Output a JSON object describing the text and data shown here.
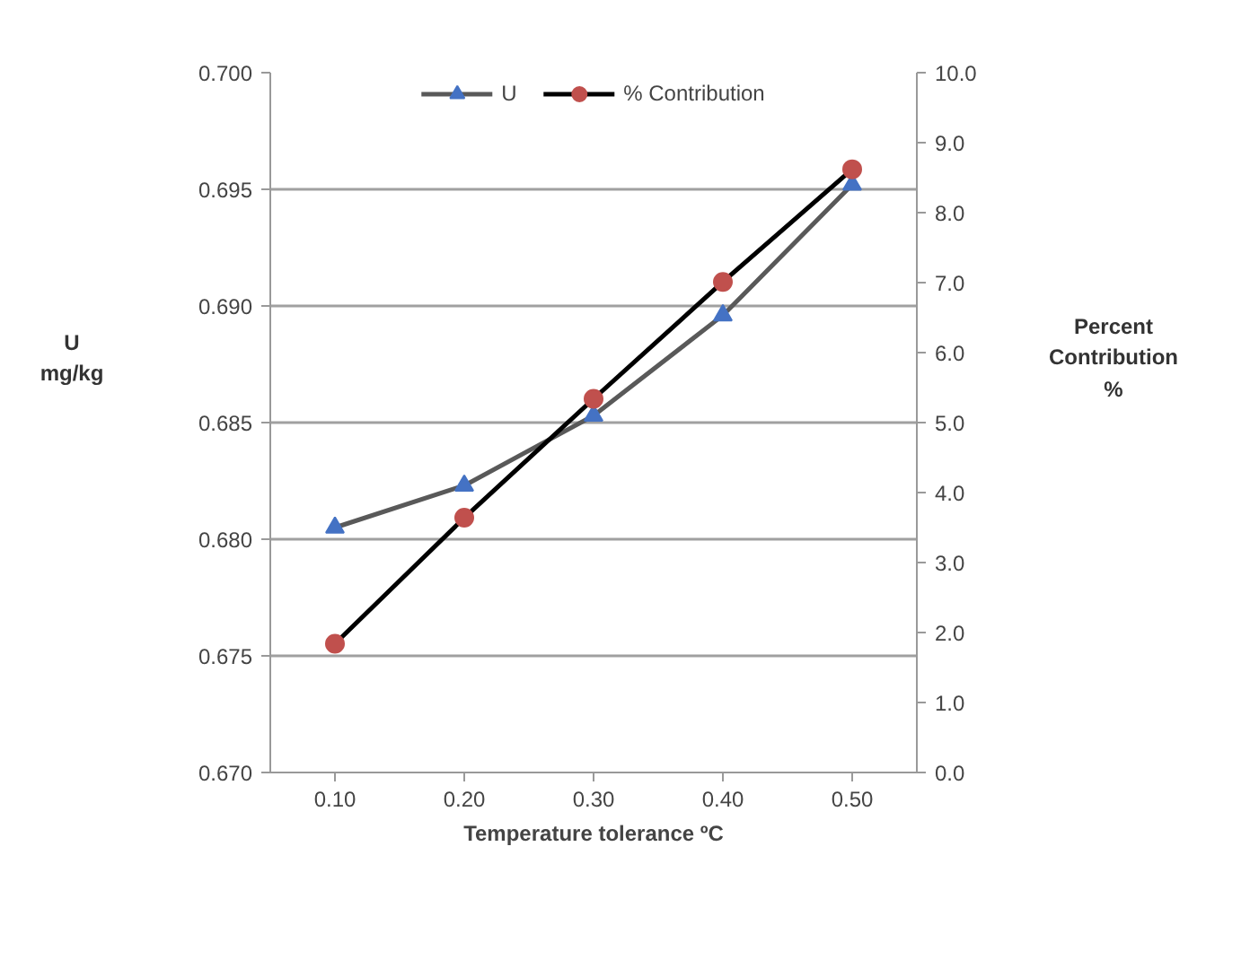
{
  "chart_data": {
    "type": "line",
    "xlabel": "Temperature tolerance ºC",
    "ylabel": "U\nmg/kg",
    "y2label": "Percent\nContribution\n%",
    "categories": [
      "0.10",
      "0.20",
      "0.30",
      "0.40",
      "0.50"
    ],
    "series": [
      {
        "name": "U",
        "color": "#4472c4",
        "marker": "triangle",
        "values": [
          0.6805,
          0.6823,
          0.6853,
          0.6896,
          0.6952
        ]
      },
      {
        "name": "% Contribution",
        "color": "#c0504d",
        "marker": "circle",
        "axis": "y2",
        "values": [
          1.84,
          3.64,
          5.34,
          7.01,
          8.62
        ]
      }
    ],
    "ylim": [
      0.67,
      0.7
    ],
    "yticks": [
      {
        "value": 0.67,
        "label": "0.670"
      },
      0.675,
      {
        "value": 0.68,
        "label": "0.680"
      },
      0.685,
      {
        "value": 0.69,
        "label": "0.690"
      },
      0.695,
      {
        "value": 0.7,
        "label": "0.700"
      }
    ],
    "y2lim": [
      0,
      10
    ],
    "y2ticks": [
      {
        "value": 0,
        "label": "0.0"
      },
      {
        "value": 1,
        "label": "1.0"
      },
      {
        "value": 2,
        "label": "2.0"
      },
      {
        "value": 3,
        "label": "3.0"
      },
      {
        "value": 4,
        "label": "4.0"
      },
      {
        "value": 5,
        "label": "5.0"
      },
      {
        "value": 6,
        "label": "6.0"
      },
      {
        "value": 7,
        "label": "7.0"
      },
      {
        "value": 8,
        "label": "8.0"
      },
      {
        "value": 9,
        "label": "9.0"
      },
      {
        "value": 10,
        "label": "10.0"
      }
    ],
    "grid": "y",
    "legend": "top"
  }
}
